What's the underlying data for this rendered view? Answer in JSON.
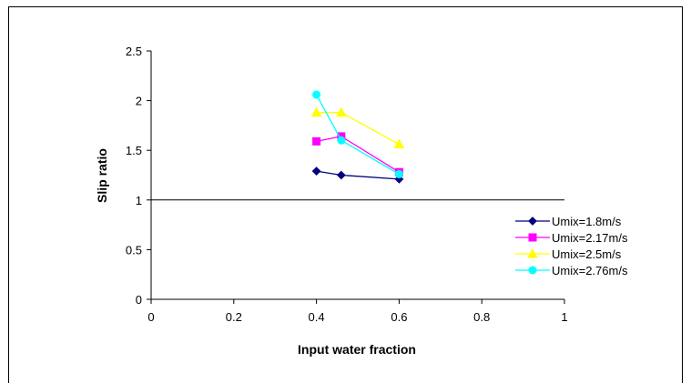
{
  "chart_data": {
    "type": "line",
    "xlabel": "Input water fraction",
    "ylabel": "Slip ratio",
    "xlim": [
      0,
      1
    ],
    "ylim": [
      0,
      2.5
    ],
    "x_ticks": [
      "0",
      "0.2",
      "0.4",
      "0.6",
      "0.8",
      "1"
    ],
    "y_ticks": [
      "0",
      "0.5",
      "1",
      "1.5",
      "2",
      "2.5"
    ],
    "grid": false,
    "legend_position": "right",
    "series": [
      {
        "name": "Umix=1.8m/s",
        "color": "#000080",
        "marker": "diamond",
        "x": [
          0.4,
          0.46,
          0.6
        ],
        "y": [
          1.29,
          1.25,
          1.21
        ]
      },
      {
        "name": "Umix=2.17m/s",
        "color": "#FF00FF",
        "marker": "square",
        "x": [
          0.4,
          0.46,
          0.6
        ],
        "y": [
          1.59,
          1.64,
          1.28
        ]
      },
      {
        "name": "Umix=2.5m/s",
        "color": "#FFFF00",
        "marker": "triangle",
        "x": [
          0.4,
          0.46,
          0.6
        ],
        "y": [
          1.88,
          1.88,
          1.56
        ]
      },
      {
        "name": "Umix=2.76m/s",
        "color": "#00FFFF",
        "marker": "circle",
        "x": [
          0.4,
          0.46,
          0.6
        ],
        "y": [
          2.06,
          1.6,
          1.26
        ]
      }
    ]
  }
}
